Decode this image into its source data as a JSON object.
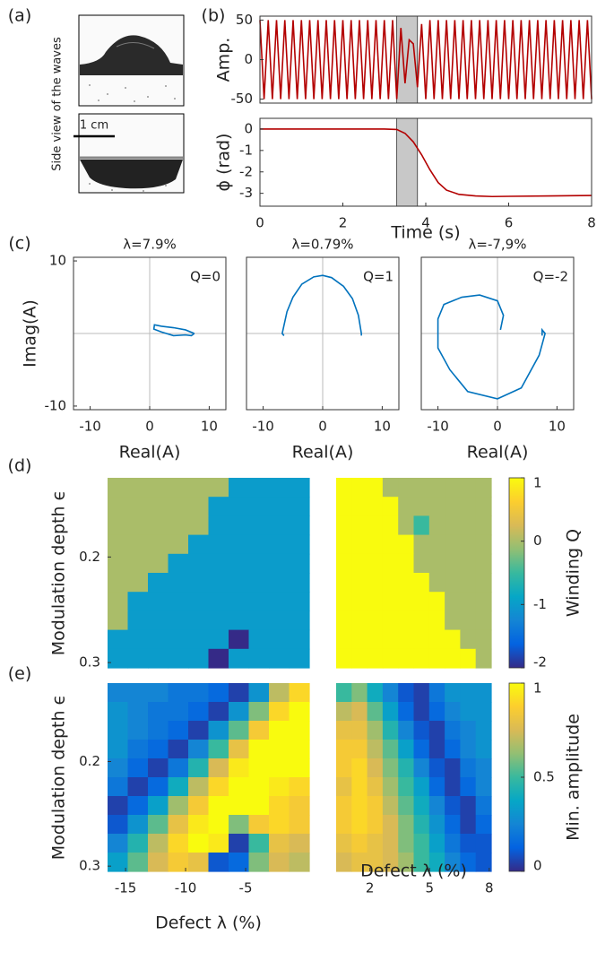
{
  "panel_labels": [
    "(a)",
    "(b)",
    "(c)",
    "(d)",
    "(e)"
  ],
  "photo_caption": "Side view of the waves",
  "scale_bar": "1 cm",
  "colormap": [
    "#352a87",
    "#0363e1",
    "#1485d4",
    "#06a7c6",
    "#38b99e",
    "#92bf73",
    "#d9ba56",
    "#fcce2e",
    "#f9fb0e"
  ],
  "chart_data": [
    {
      "type": "line",
      "ylabel": "Amp.",
      "color": "#b30000",
      "x": [
        0,
        0.1,
        0.2,
        0.3,
        0.4,
        0.5,
        0.6,
        0.7,
        0.8,
        0.9,
        1,
        1.1,
        1.2,
        1.3,
        1.4,
        1.5,
        1.6,
        1.7,
        1.8,
        1.9,
        2,
        2.1,
        2.2,
        2.3,
        2.4,
        2.5,
        2.6,
        2.7,
        2.8,
        2.9,
        3,
        3.1,
        3.2,
        3.3,
        3.4,
        3.5,
        3.6,
        3.7,
        3.8,
        3.9,
        4,
        4.1,
        4.2,
        4.3,
        4.4,
        4.5,
        4.6,
        4.7,
        4.8,
        4.9,
        5,
        5.1,
        5.2,
        5.3,
        5.4,
        5.5,
        5.6,
        5.7,
        5.8,
        5.9,
        6,
        6.1,
        6.2,
        6.3,
        6.4,
        6.5,
        6.6,
        6.7,
        6.8,
        6.9,
        7,
        7.1,
        7.2,
        7.3,
        7.4,
        7.5,
        7.6,
        7.7,
        7.8,
        7.9,
        8
      ],
      "values": [
        50,
        -50,
        50,
        -50,
        50,
        -50,
        50,
        -50,
        50,
        -50,
        50,
        -50,
        50,
        -50,
        50,
        -50,
        50,
        -50,
        50,
        -50,
        50,
        -50,
        50,
        -50,
        50,
        -50,
        50,
        -50,
        50,
        -50,
        50,
        -50,
        50,
        -50,
        40,
        -30,
        25,
        20,
        -35,
        45,
        -50,
        50,
        -50,
        50,
        -50,
        50,
        -50,
        50,
        -50,
        50,
        -50,
        50,
        -50,
        50,
        -50,
        50,
        -50,
        50,
        -50,
        50,
        -50,
        50,
        -50,
        50,
        -50,
        50,
        -50,
        50,
        -50,
        50,
        -50,
        50,
        -50,
        50,
        -50,
        50,
        -50,
        50,
        -50,
        50,
        -50
      ],
      "xlim": [
        0,
        8
      ],
      "ylim": [
        -55,
        55
      ],
      "yticks": [
        -50,
        0,
        50
      ],
      "highlight": [
        3.3,
        3.8
      ]
    },
    {
      "type": "line",
      "ylabel": "ϕ (rad)",
      "xlabel": "Time (s)",
      "color": "#b30000",
      "x": [
        0,
        1,
        2,
        3,
        3.3,
        3.5,
        3.7,
        3.9,
        4.1,
        4.3,
        4.5,
        4.8,
        5.2,
        5.6,
        6,
        7,
        8
      ],
      "values": [
        0,
        0,
        0,
        0,
        -0.02,
        -0.2,
        -0.6,
        -1.2,
        -1.9,
        -2.5,
        -2.85,
        -3.05,
        -3.12,
        -3.15,
        -3.14,
        -3.12,
        -3.1
      ],
      "xlim": [
        0,
        8
      ],
      "ylim": [
        -3.6,
        0.5
      ],
      "xticks": [
        0,
        2,
        4,
        6,
        8
      ],
      "yticks": [
        -3,
        -2,
        -1,
        0
      ],
      "highlight": [
        3.3,
        3.8
      ]
    },
    {
      "type": "line",
      "title": "λ=7.9%",
      "annotation": "Q=0",
      "ylabel": "Imag(A)",
      "xlabel": "Real(A)",
      "color": "#0072bd",
      "x": [
        7.5,
        6,
        4,
        2,
        0.8,
        0.7,
        2,
        4,
        6,
        7,
        7.5
      ],
      "values": [
        0,
        0.5,
        0.8,
        1,
        1.2,
        0.6,
        0.2,
        -0.3,
        -0.2,
        -0.3,
        0
      ],
      "xlim": [
        -12.8,
        12.8
      ],
      "ylim": [
        -10.5,
        10.5
      ],
      "xticks": [
        -10,
        0,
        10
      ],
      "yticks": [
        -10,
        10
      ],
      "zero_lines": true
    },
    {
      "type": "line",
      "title": "λ=0.79%",
      "annotation": "Q=1",
      "xlabel": "Real(A)",
      "color": "#0072bd",
      "x": [
        6.5,
        6.5,
        6,
        5,
        3.5,
        1.5,
        0,
        -1.5,
        -3.5,
        -5,
        -6,
        -6.8,
        -6.5
      ],
      "values": [
        -0.3,
        0,
        2.5,
        4.8,
        6.5,
        7.7,
        8,
        7.8,
        6.8,
        5,
        3,
        0,
        -0.3
      ],
      "xlim": [
        -12.8,
        12.8
      ],
      "ylim": [
        -10.5,
        10.5
      ],
      "xticks": [
        -10,
        0,
        10
      ],
      "zero_lines": true
    },
    {
      "type": "line",
      "title": "λ=-7,9%",
      "annotation": "Q=-2",
      "xlabel": "Real(A)",
      "color": "#0072bd",
      "x": [
        0.5,
        1,
        0,
        -3,
        -6,
        -9,
        -10,
        -10,
        -8,
        -5,
        0,
        4,
        7,
        8,
        7.5,
        7.5
      ],
      "values": [
        0.5,
        2.5,
        4.5,
        5.3,
        5,
        4,
        2,
        -2,
        -5,
        -8,
        -9,
        -7.5,
        -3,
        0,
        0.5,
        -0.3
      ],
      "xlim": [
        -12.8,
        12.8
      ],
      "ylim": [
        -10.5,
        10.5
      ],
      "xticks": [
        -10,
        0,
        10
      ],
      "zero_lines": true
    },
    {
      "type": "heatmap",
      "ylabel": "Modulation depth ϵ",
      "x": [
        -15.66,
        -13.98,
        -12.3,
        -10.62,
        -8.94,
        -7.26,
        -5.58,
        -3.9,
        -2.22,
        -0.54
      ],
      "y": [
        0.134,
        0.152,
        0.17,
        0.188,
        0.206,
        0.224,
        0.242,
        0.26,
        0.278,
        0.296
      ],
      "z": [
        [
          0,
          0,
          0,
          0,
          0,
          0,
          -1,
          -1,
          -1,
          -1
        ],
        [
          0,
          0,
          0,
          0,
          0,
          -1,
          -1,
          -1,
          -1,
          -1
        ],
        [
          0,
          0,
          0,
          0,
          0,
          -1,
          -1,
          -1,
          -1,
          -1
        ],
        [
          0,
          0,
          0,
          0,
          -1,
          -1,
          -1,
          -1,
          -1,
          -1
        ],
        [
          0,
          0,
          0,
          -1,
          -1,
          -1,
          -1,
          -1,
          -1,
          -1
        ],
        [
          0,
          0,
          -1,
          -1,
          -1,
          -1,
          -1,
          -1,
          -1,
          -1
        ],
        [
          0,
          -1,
          -1,
          -1,
          -1,
          -1,
          -1,
          -1,
          -1,
          -1
        ],
        [
          0,
          -1,
          -1,
          -1,
          -1,
          -1,
          -1,
          -1,
          -1,
          -1
        ],
        [
          -1,
          -1,
          -1,
          -1,
          -1,
          -1,
          -2,
          -1,
          -1,
          -1
        ],
        [
          -1,
          -1,
          -1,
          -1,
          -1,
          -2,
          -1,
          -1,
          -1,
          -1
        ]
      ],
      "xlim": [
        -16.5,
        0.3
      ],
      "ylim": [
        0.125,
        0.305
      ],
      "yaxis_reversed": true,
      "yticks": [
        0.2,
        0.3
      ],
      "zlim": [
        -2,
        1
      ]
    },
    {
      "type": "heatmap",
      "x": [
        0.69,
        1.47,
        2.25,
        3.03,
        3.81,
        4.59,
        5.37,
        6.15,
        6.93,
        7.71
      ],
      "y": [
        0.134,
        0.152,
        0.17,
        0.188,
        0.206,
        0.224,
        0.242,
        0.26,
        0.278,
        0.296
      ],
      "z": [
        [
          1,
          1,
          1,
          0,
          0,
          0,
          0,
          0,
          0,
          0
        ],
        [
          1,
          1,
          1,
          1,
          0,
          0,
          0,
          0,
          0,
          0
        ],
        [
          1,
          1,
          1,
          1,
          0,
          -0.5,
          0,
          0,
          0,
          0
        ],
        [
          1,
          1,
          1,
          1,
          1,
          0,
          0,
          0,
          0,
          0
        ],
        [
          1,
          1,
          1,
          1,
          1,
          0,
          0,
          0,
          0,
          0
        ],
        [
          1,
          1,
          1,
          1,
          1,
          1,
          0,
          0,
          0,
          0
        ],
        [
          1,
          1,
          1,
          1,
          1,
          1,
          1,
          0,
          0,
          0
        ],
        [
          1,
          1,
          1,
          1,
          1,
          1,
          1,
          0,
          0,
          0
        ],
        [
          1,
          1,
          1,
          1,
          1,
          1,
          1,
          1,
          0,
          0
        ],
        [
          1,
          1,
          1,
          1,
          1,
          1,
          1,
          1,
          1,
          0
        ]
      ],
      "xlim": [
        0.3,
        8.1
      ],
      "ylim": [
        0.125,
        0.305
      ],
      "yaxis_reversed": true,
      "zlim": [
        -2,
        1
      ],
      "colorbar": {
        "label": "Winding Q",
        "ticks": [
          -2,
          -1,
          0,
          1
        ]
      }
    },
    {
      "type": "heatmap",
      "ylabel": "Modulation depth ϵ",
      "xlabel": "Defect λ (%)",
      "x": [
        -15.66,
        -13.98,
        -12.3,
        -10.62,
        -8.94,
        -7.26,
        -5.58,
        -3.9,
        -2.22,
        -0.54
      ],
      "y": [
        0.134,
        0.152,
        0.17,
        0.188,
        0.206,
        0.224,
        0.242,
        0.26,
        0.278,
        0.296
      ],
      "z": [
        [
          0.25,
          0.25,
          0.25,
          0.2,
          0.2,
          0.15,
          0.05,
          0.3,
          0.7,
          0.9
        ],
        [
          0.3,
          0.25,
          0.2,
          0.2,
          0.15,
          0.05,
          0.3,
          0.6,
          0.9,
          1
        ],
        [
          0.3,
          0.25,
          0.2,
          0.15,
          0.05,
          0.3,
          0.55,
          0.85,
          1,
          1
        ],
        [
          0.3,
          0.2,
          0.15,
          0.05,
          0.25,
          0.5,
          0.8,
          1,
          1,
          1
        ],
        [
          0.25,
          0.15,
          0.05,
          0.2,
          0.45,
          0.75,
          0.95,
          1,
          1,
          1
        ],
        [
          0.2,
          0.05,
          0.15,
          0.4,
          0.7,
          0.9,
          1,
          1,
          0.95,
          0.9
        ],
        [
          0.05,
          0.15,
          0.35,
          0.65,
          0.85,
          1,
          1,
          1,
          0.9,
          0.85
        ],
        [
          0.1,
          0.3,
          0.55,
          0.8,
          0.95,
          1,
          0.6,
          0.85,
          0.9,
          0.85
        ],
        [
          0.25,
          0.45,
          0.7,
          0.9,
          1,
          0.95,
          0.05,
          0.5,
          0.8,
          0.75
        ],
        [
          0.35,
          0.55,
          0.75,
          0.85,
          0.8,
          0.1,
          0.15,
          0.6,
          0.75,
          0.7
        ]
      ],
      "xlim": [
        -16.5,
        0.3
      ],
      "ylim": [
        0.125,
        0.305
      ],
      "yaxis_reversed": true,
      "xticks": [
        -15,
        -10,
        -5
      ],
      "yticks": [
        0.2,
        0.3
      ],
      "zlim": [
        0,
        1
      ]
    },
    {
      "type": "heatmap",
      "xlabel": "Defect λ (%)",
      "x": [
        0.69,
        1.47,
        2.25,
        3.03,
        3.81,
        4.59,
        5.37,
        6.15,
        6.93,
        7.71
      ],
      "y": [
        0.134,
        0.152,
        0.17,
        0.188,
        0.206,
        0.224,
        0.242,
        0.26,
        0.278,
        0.296
      ],
      "z": [
        [
          0.5,
          0.6,
          0.4,
          0.25,
          0.1,
          0.05,
          0.2,
          0.3,
          0.3,
          0.3
        ],
        [
          0.7,
          0.75,
          0.55,
          0.35,
          0.15,
          0.05,
          0.15,
          0.25,
          0.3,
          0.3
        ],
        [
          0.8,
          0.8,
          0.65,
          0.45,
          0.25,
          0.1,
          0.05,
          0.2,
          0.25,
          0.3
        ],
        [
          0.85,
          0.85,
          0.7,
          0.55,
          0.35,
          0.15,
          0.05,
          0.15,
          0.25,
          0.3
        ],
        [
          0.85,
          0.9,
          0.75,
          0.6,
          0.45,
          0.25,
          0.1,
          0.05,
          0.2,
          0.25
        ],
        [
          0.8,
          0.9,
          0.8,
          0.65,
          0.5,
          0.35,
          0.15,
          0.05,
          0.15,
          0.25
        ],
        [
          0.85,
          0.9,
          0.85,
          0.7,
          0.55,
          0.4,
          0.25,
          0.1,
          0.05,
          0.2
        ],
        [
          0.85,
          0.9,
          0.85,
          0.75,
          0.6,
          0.45,
          0.3,
          0.15,
          0.05,
          0.15
        ],
        [
          0.8,
          0.85,
          0.8,
          0.75,
          0.6,
          0.5,
          0.35,
          0.2,
          0.1,
          0.1
        ],
        [
          0.75,
          0.8,
          0.8,
          0.75,
          0.65,
          0.5,
          0.4,
          0.25,
          0.15,
          0.1
        ]
      ],
      "xlim": [
        0.3,
        8.1
      ],
      "ylim": [
        0.125,
        0.305
      ],
      "yaxis_reversed": true,
      "xticks": [
        2,
        5,
        8
      ],
      "zlim": [
        0,
        1
      ],
      "colorbar": {
        "label": "Min. amplitude",
        "ticks": [
          0,
          0.5,
          1
        ]
      }
    }
  ]
}
